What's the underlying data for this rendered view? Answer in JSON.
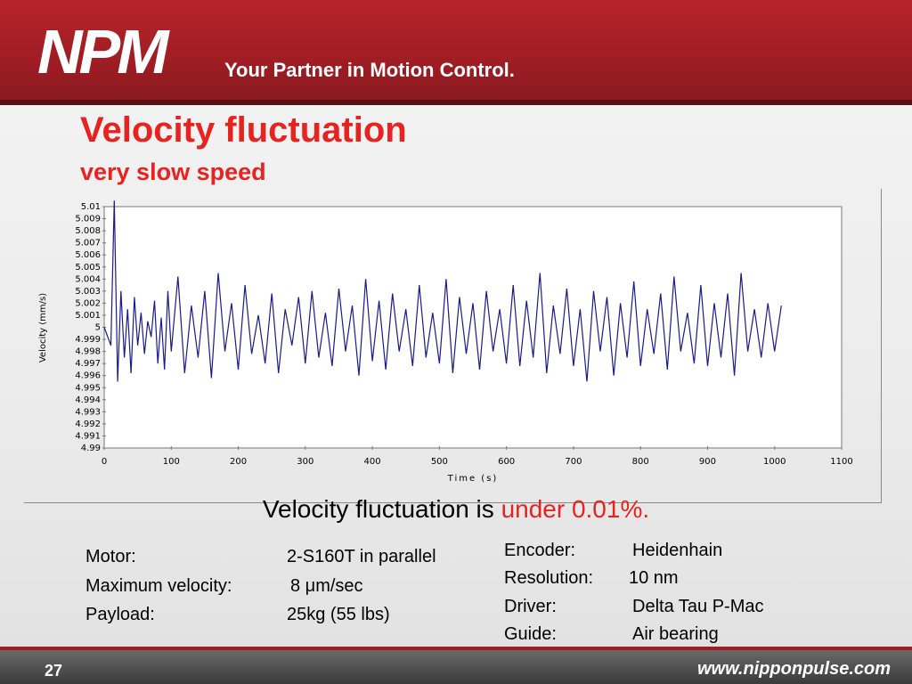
{
  "header": {
    "logo": "NPM",
    "tagline": "Your Partner in Motion Control."
  },
  "slide": {
    "title": "Velocity fluctuation",
    "subtitle": "very slow speed"
  },
  "caption": {
    "prefix": "Velocity fluctuation is ",
    "highlight": "under 0.01%."
  },
  "specs_left": [
    {
      "label": "Motor:",
      "value": "2-S160T in parallel"
    },
    {
      "label": "Maximum velocity:",
      "value": "8 μm/sec"
    },
    {
      "label": "Payload:",
      "value": "25kg (55 lbs)"
    }
  ],
  "specs_right": [
    {
      "label": "Encoder:",
      "value": "Heidenhain"
    },
    {
      "label": "Resolution:",
      "value": "10 nm"
    },
    {
      "label": "Driver:",
      "value": "Delta Tau  P-Mac"
    },
    {
      "label": "Guide:",
      "value": "Air bearing"
    }
  ],
  "footer": {
    "page": "27",
    "site": "www.nipponpulse.com"
  },
  "colors": {
    "accent": "#e8231f",
    "brand": "#a01d24",
    "series": "#1a1a8c"
  },
  "chart_data": {
    "type": "line",
    "xlabel": "Time (s)",
    "ylabel": "Velocity (mm/s)",
    "xlim": [
      0,
      1100
    ],
    "ylim": [
      4.99,
      5.01
    ],
    "x_ticks": [
      "0",
      "100",
      "200",
      "300",
      "400",
      "500",
      "600",
      "700",
      "800",
      "900",
      "1000",
      "1100"
    ],
    "y_ticks": [
      "5.01",
      "5.009",
      "5.008",
      "5.007",
      "5.006",
      "5.005",
      "5.004",
      "5.003",
      "5.002",
      "5.001",
      "5",
      "4.999",
      "4.998",
      "4.997",
      "4.996",
      "4.995",
      "4.994",
      "4.993",
      "4.992",
      "4.991",
      "4.99"
    ],
    "grid": false,
    "series": [
      {
        "x": [
          0,
          10,
          15,
          20,
          25,
          30,
          35,
          40,
          45,
          50,
          55,
          60,
          65,
          70,
          75,
          80,
          85,
          90,
          95,
          100,
          110,
          120,
          130,
          140,
          150,
          160,
          170,
          180,
          190,
          200,
          210,
          220,
          230,
          240,
          250,
          260,
          270,
          280,
          290,
          300,
          310,
          320,
          330,
          340,
          350,
          360,
          370,
          380,
          390,
          400,
          410,
          420,
          430,
          440,
          450,
          460,
          470,
          480,
          490,
          500,
          510,
          520,
          530,
          540,
          550,
          560,
          570,
          580,
          590,
          600,
          610,
          620,
          630,
          640,
          650,
          660,
          670,
          680,
          690,
          700,
          710,
          720,
          730,
          740,
          750,
          760,
          770,
          780,
          790,
          800,
          810,
          820,
          830,
          840,
          850,
          860,
          870,
          880,
          890,
          900,
          910,
          920,
          930,
          940,
          950,
          960,
          970,
          980,
          990,
          1000,
          1010
        ],
        "values": [
          5.0,
          4.9985,
          5.0105,
          4.9955,
          5.003,
          4.9975,
          5.0015,
          4.9962,
          5.0025,
          4.9985,
          5.0012,
          4.9978,
          5.0005,
          4.9992,
          5.0022,
          4.997,
          5.0008,
          4.9965,
          5.003,
          4.998,
          5.0042,
          4.9962,
          5.0018,
          4.9975,
          5.003,
          4.9958,
          5.0045,
          4.998,
          5.002,
          4.9965,
          5.0035,
          4.9978,
          5.001,
          4.997,
          5.0028,
          4.9962,
          5.0015,
          4.9985,
          5.0025,
          4.997,
          5.003,
          4.9975,
          5.0012,
          4.9968,
          5.0032,
          4.998,
          5.0018,
          4.996,
          5.004,
          4.9972,
          5.0022,
          4.9965,
          5.0028,
          4.998,
          5.0015,
          4.9968,
          5.0035,
          4.9975,
          5.0012,
          4.997,
          5.004,
          4.9962,
          5.0025,
          4.9978,
          5.002,
          4.9965,
          5.003,
          4.998,
          5.0015,
          4.997,
          5.0035,
          4.9968,
          5.0022,
          4.9975,
          5.0045,
          4.9962,
          5.0018,
          4.9978,
          5.0032,
          4.9968,
          5.0015,
          4.9955,
          5.003,
          4.998,
          5.0025,
          4.996,
          5.002,
          4.9975,
          5.0038,
          4.9968,
          5.0015,
          4.9978,
          5.0028,
          4.9965,
          5.0042,
          4.998,
          5.0012,
          4.997,
          5.0035,
          4.9968,
          5.002,
          4.9975,
          5.0028,
          4.996,
          5.0045,
          4.998,
          5.0015,
          4.9975,
          5.002,
          4.998,
          5.0018
        ]
      }
    ]
  }
}
